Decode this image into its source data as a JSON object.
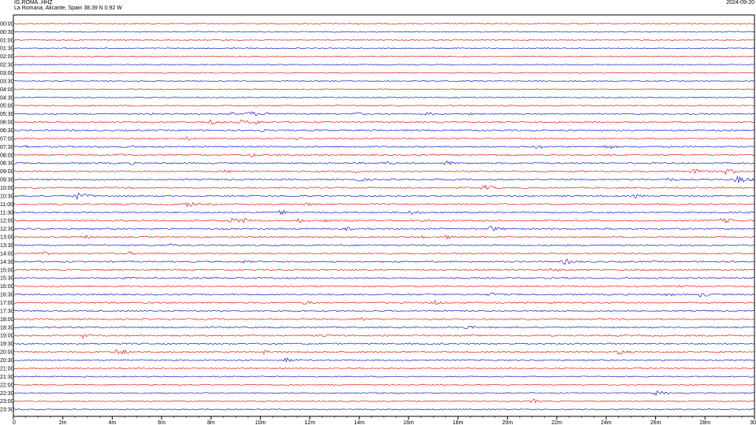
{
  "header": {
    "station": "IG.ROMA..HHZ",
    "location": "La Romana, Alicante, Spain  38.39 N 0.92 W",
    "date": "2024-09-20"
  },
  "chart_data": {
    "type": "line",
    "title": "",
    "xlabel": "",
    "ylabel": "",
    "x_tick_labels": [
      "0",
      "2m",
      "4m",
      "6m",
      "8m",
      "10m",
      "12m",
      "14m",
      "16m",
      "18m",
      "20m",
      "22m",
      "24m",
      "26m",
      "28m",
      "30"
    ],
    "x_ticks_minutes": [
      0,
      2,
      4,
      6,
      8,
      10,
      12,
      14,
      16,
      18,
      20,
      22,
      24,
      26,
      28,
      30
    ],
    "xlim": [
      0,
      30
    ],
    "row_colors": [
      "#e8191c",
      "#1a1acc"
    ],
    "rows": [
      "00:00",
      "00:30",
      "01:00",
      "01:30",
      "02:00",
      "02:30",
      "03:00",
      "03:30",
      "04:00",
      "04:30",
      "05:00",
      "05:30",
      "06:00",
      "06:30",
      "07:00",
      "07:30",
      "08:00",
      "08:30",
      "09:00",
      "09:30",
      "10:00",
      "10:30",
      "11:00",
      "11:30",
      "12:00",
      "12:30",
      "13:00",
      "13:30",
      "14:00",
      "14:30",
      "15:00",
      "15:30",
      "16:00",
      "16:30",
      "17:00",
      "17:30",
      "18:00",
      "18:30",
      "19:00",
      "19:30",
      "20:00",
      "20:30",
      "21:00",
      "21:30",
      "22:00",
      "22:30",
      "23:00",
      "23:30"
    ],
    "noise_levels": [
      0.6,
      0.6,
      0.6,
      0.6,
      0.6,
      0.6,
      0.6,
      0.6,
      0.6,
      0.6,
      0.8,
      0.8,
      0.9,
      0.9,
      0.9,
      0.9,
      0.9,
      0.9,
      0.9,
      0.9,
      0.9,
      0.9,
      0.9,
      0.9,
      0.9,
      0.9,
      0.9,
      0.9,
      0.9,
      0.9,
      0.9,
      0.9,
      0.9,
      0.9,
      0.9,
      0.9,
      0.9,
      0.9,
      0.9,
      0.9,
      0.9,
      0.8,
      0.7,
      0.7,
      0.7,
      0.7,
      0.7,
      0.7
    ],
    "events": [
      {
        "row": "04:30",
        "minute": 28.0,
        "amplitude": 1.5
      },
      {
        "row": "05:30",
        "minute": 5.5,
        "amplitude": 2.0
      },
      {
        "row": "05:30",
        "minute": 8.8,
        "amplitude": 2.5
      },
      {
        "row": "05:30",
        "minute": 9.5,
        "amplitude": 4.0
      },
      {
        "row": "05:30",
        "minute": 10.3,
        "amplitude": 2.5
      },
      {
        "row": "05:30",
        "minute": 13.8,
        "amplitude": 3.0
      },
      {
        "row": "05:30",
        "minute": 16.7,
        "amplitude": 3.0
      },
      {
        "row": "05:30",
        "minute": 18.5,
        "amplitude": 2.0
      },
      {
        "row": "06:00",
        "minute": 8.0,
        "amplitude": 3.5
      },
      {
        "row": "06:00",
        "minute": 9.2,
        "amplitude": 3.5
      },
      {
        "row": "06:00",
        "minute": 9.8,
        "amplitude": 3.0
      },
      {
        "row": "06:00",
        "minute": 22.0,
        "amplitude": 1.5
      },
      {
        "row": "06:30",
        "minute": 10.0,
        "amplitude": 2.5
      },
      {
        "row": "06:30",
        "minute": 12.7,
        "amplitude": 1.5
      },
      {
        "row": "06:30",
        "minute": 14.5,
        "amplitude": 1.5
      },
      {
        "row": "07:00",
        "minute": 7.0,
        "amplitude": 3.0
      },
      {
        "row": "07:00",
        "minute": 11.5,
        "amplitude": 2.5
      },
      {
        "row": "07:30",
        "minute": 0.5,
        "amplitude": 2.0
      },
      {
        "row": "07:30",
        "minute": 3.5,
        "amplitude": 1.5
      },
      {
        "row": "07:30",
        "minute": 4.8,
        "amplitude": 2.0
      },
      {
        "row": "07:30",
        "minute": 13.8,
        "amplitude": 2.0
      },
      {
        "row": "07:30",
        "minute": 21.2,
        "amplitude": 3.0
      },
      {
        "row": "07:30",
        "minute": 24.0,
        "amplitude": 3.5
      },
      {
        "row": "08:00",
        "minute": 4.2,
        "amplitude": 2.5
      },
      {
        "row": "08:00",
        "minute": 9.6,
        "amplitude": 3.0
      },
      {
        "row": "08:00",
        "minute": 10.8,
        "amplitude": 2.5
      },
      {
        "row": "08:00",
        "minute": 17.8,
        "amplitude": 1.5
      },
      {
        "row": "08:30",
        "minute": 0.3,
        "amplitude": 1.5
      },
      {
        "row": "08:30",
        "minute": 4.7,
        "amplitude": 2.5
      },
      {
        "row": "08:30",
        "minute": 14.0,
        "amplitude": 1.5
      },
      {
        "row": "08:30",
        "minute": 15.0,
        "amplitude": 3.0
      },
      {
        "row": "08:30",
        "minute": 17.5,
        "amplitude": 3.5
      },
      {
        "row": "09:00",
        "minute": 8.6,
        "amplitude": 2.5
      },
      {
        "row": "09:00",
        "minute": 13.8,
        "amplitude": 2.5
      },
      {
        "row": "09:00",
        "minute": 26.7,
        "amplitude": 2.0
      },
      {
        "row": "09:00",
        "minute": 27.5,
        "amplitude": 4.0
      },
      {
        "row": "09:00",
        "minute": 28.8,
        "amplitude": 4.5
      },
      {
        "row": "09:30",
        "minute": 14.0,
        "amplitude": 3.0
      },
      {
        "row": "09:30",
        "minute": 26.5,
        "amplitude": 3.0
      },
      {
        "row": "09:30",
        "minute": 29.3,
        "amplitude": 5.0
      },
      {
        "row": "10:00",
        "minute": 19.0,
        "amplitude": 4.0
      },
      {
        "row": "10:30",
        "minute": 2.5,
        "amplitude": 5.0
      },
      {
        "row": "10:30",
        "minute": 25.2,
        "amplitude": 3.0
      },
      {
        "row": "11:00",
        "minute": 7.0,
        "amplitude": 4.0
      },
      {
        "row": "11:00",
        "minute": 11.8,
        "amplitude": 3.0
      },
      {
        "row": "11:30",
        "minute": 10.8,
        "amplitude": 3.5
      },
      {
        "row": "11:30",
        "minute": 16.0,
        "amplitude": 3.5
      },
      {
        "row": "11:30",
        "minute": 21.0,
        "amplitude": 1.5
      },
      {
        "row": "12:00",
        "minute": 8.8,
        "amplitude": 4.0
      },
      {
        "row": "12:00",
        "minute": 9.3,
        "amplitude": 4.0
      },
      {
        "row": "12:00",
        "minute": 11.5,
        "amplitude": 3.5
      },
      {
        "row": "12:00",
        "minute": 12.5,
        "amplitude": 3.0
      },
      {
        "row": "12:00",
        "minute": 28.7,
        "amplitude": 4.0
      },
      {
        "row": "12:30",
        "minute": 13.5,
        "amplitude": 2.5
      },
      {
        "row": "12:30",
        "minute": 19.3,
        "amplitude": 4.0
      },
      {
        "row": "13:00",
        "minute": 2.8,
        "amplitude": 3.5
      },
      {
        "row": "13:00",
        "minute": 16.5,
        "amplitude": 2.5
      },
      {
        "row": "13:00",
        "minute": 17.5,
        "amplitude": 3.0
      },
      {
        "row": "13:30",
        "minute": 6.2,
        "amplitude": 3.0
      },
      {
        "row": "14:00",
        "minute": 1.3,
        "amplitude": 2.5
      },
      {
        "row": "14:00",
        "minute": 4.7,
        "amplitude": 2.5
      },
      {
        "row": "14:30",
        "minute": 9.3,
        "amplitude": 2.5
      },
      {
        "row": "14:30",
        "minute": 22.3,
        "amplitude": 4.0
      },
      {
        "row": "15:00",
        "minute": 21.8,
        "amplitude": 3.0
      },
      {
        "row": "15:30",
        "minute": 4.5,
        "amplitude": 1.5
      },
      {
        "row": "16:00",
        "minute": 1.5,
        "amplitude": 1.5
      },
      {
        "row": "16:00",
        "minute": 27.0,
        "amplitude": 1.5
      },
      {
        "row": "16:30",
        "minute": 19.3,
        "amplitude": 3.0
      },
      {
        "row": "16:30",
        "minute": 26.5,
        "amplitude": 2.5
      },
      {
        "row": "16:30",
        "minute": 27.8,
        "amplitude": 3.5
      },
      {
        "row": "17:00",
        "minute": 11.8,
        "amplitude": 3.0
      },
      {
        "row": "17:00",
        "minute": 17.0,
        "amplitude": 3.5
      },
      {
        "row": "17:00",
        "minute": 21.8,
        "amplitude": 2.0
      },
      {
        "row": "18:00",
        "minute": 14.0,
        "amplitude": 3.5
      },
      {
        "row": "18:30",
        "minute": 18.3,
        "amplitude": 3.0
      },
      {
        "row": "19:00",
        "minute": 2.8,
        "amplitude": 3.5
      },
      {
        "row": "19:00",
        "minute": 12.5,
        "amplitude": 3.0
      },
      {
        "row": "20:00",
        "minute": 4.2,
        "amplitude": 4.5
      },
      {
        "row": "20:00",
        "minute": 10.0,
        "amplitude": 3.5
      },
      {
        "row": "20:00",
        "minute": 24.5,
        "amplitude": 4.0
      },
      {
        "row": "20:30",
        "minute": 11.0,
        "amplitude": 3.5
      },
      {
        "row": "22:30",
        "minute": 20.0,
        "amplitude": 2.0
      },
      {
        "row": "22:30",
        "minute": 26.0,
        "amplitude": 3.5
      },
      {
        "row": "23:00",
        "minute": 21.0,
        "amplitude": 3.0
      }
    ]
  }
}
